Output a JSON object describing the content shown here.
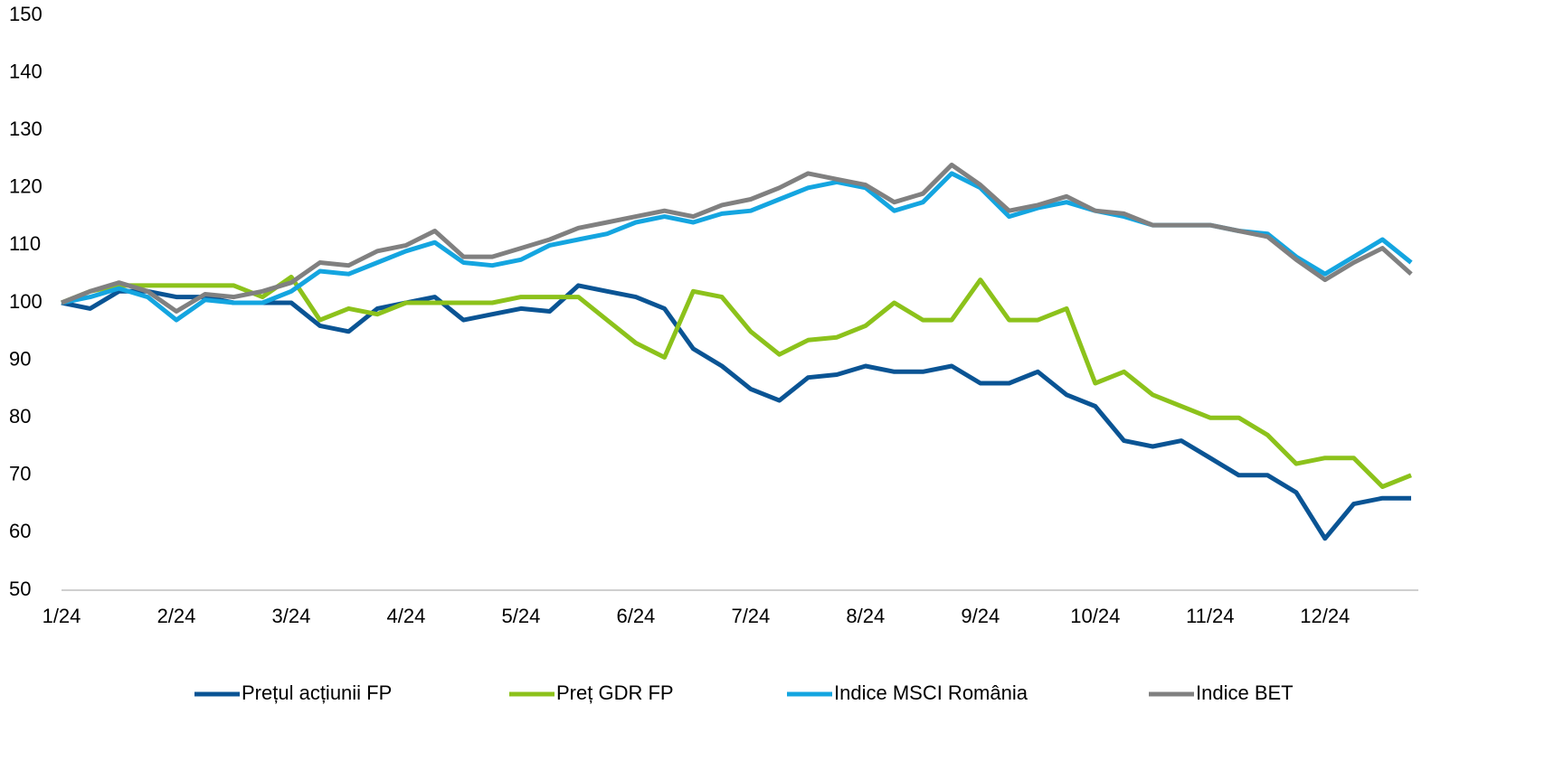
{
  "chart_data": {
    "type": "line",
    "categories": [
      "1/24",
      null,
      null,
      null,
      "2/24",
      null,
      null,
      null,
      "3/24",
      null,
      null,
      null,
      "4/24",
      null,
      null,
      null,
      "5/24",
      null,
      null,
      null,
      "6/24",
      null,
      null,
      null,
      "7/24",
      null,
      null,
      null,
      "8/24",
      null,
      null,
      null,
      "9/24",
      null,
      null,
      null,
      "10/24",
      null,
      null,
      null,
      "11/24",
      null,
      null,
      null,
      "12/24",
      null,
      null,
      null
    ],
    "series": [
      {
        "name": "Prețul acțiunii FP",
        "color": "#0a5494",
        "values": [
          100,
          99,
          102,
          102,
          101,
          101,
          100,
          100,
          100,
          96,
          95,
          99,
          100,
          101,
          97,
          98,
          99,
          98.5,
          103,
          102,
          101,
          99,
          92,
          89,
          85,
          83,
          87,
          87.5,
          89,
          88,
          88,
          89,
          86,
          86,
          88,
          84,
          82,
          76,
          75,
          76,
          73,
          70,
          70,
          67,
          59,
          65,
          66,
          66
        ]
      },
      {
        "name": "Preț GDR FP",
        "color": "#8cc21b",
        "values": [
          100,
          102,
          103,
          103,
          103,
          103,
          103,
          101,
          104.5,
          97,
          99,
          98,
          100,
          100,
          100,
          100,
          101,
          101,
          101,
          97,
          93,
          90.5,
          102,
          101,
          95,
          91,
          93.5,
          94,
          96,
          100,
          97,
          97,
          104,
          97,
          97,
          99,
          86,
          88,
          84,
          82,
          80,
          80,
          77,
          72,
          73,
          73,
          68,
          70
        ]
      },
      {
        "name": "Indice MSCI România",
        "color": "#14a5e0",
        "values": [
          100,
          101,
          102.5,
          101,
          97,
          100.5,
          100,
          100,
          102,
          105.5,
          105,
          107,
          109,
          110.5,
          107,
          106.5,
          107.5,
          110,
          111,
          112,
          114,
          115,
          114,
          115.5,
          116,
          118,
          120,
          121,
          120,
          116,
          117.5,
          122.5,
          120,
          115,
          116.5,
          117.5,
          116,
          115,
          113.5,
          113.5,
          113.5,
          112.5,
          112,
          108,
          105,
          108,
          111,
          107
        ]
      },
      {
        "name": "Indice BET",
        "color": "#808080",
        "values": [
          100,
          102,
          103.5,
          102,
          98.5,
          101.5,
          101,
          102,
          103.5,
          107,
          106.5,
          109,
          110,
          112.5,
          108,
          108,
          109.5,
          111,
          113,
          114,
          115,
          116,
          115,
          117,
          118,
          120,
          122.5,
          121.5,
          120.5,
          117.5,
          119,
          124,
          120.5,
          116,
          117,
          118.5,
          116,
          115.5,
          113.5,
          113.5,
          113.5,
          112.5,
          111.5,
          107.5,
          104,
          107,
          109.5,
          105
        ]
      }
    ],
    "ylim": [
      50,
      150
    ],
    "yticks": [
      50,
      60,
      70,
      80,
      90,
      100,
      110,
      120,
      130,
      140,
      150
    ],
    "grid": false,
    "legend": "bottom"
  }
}
